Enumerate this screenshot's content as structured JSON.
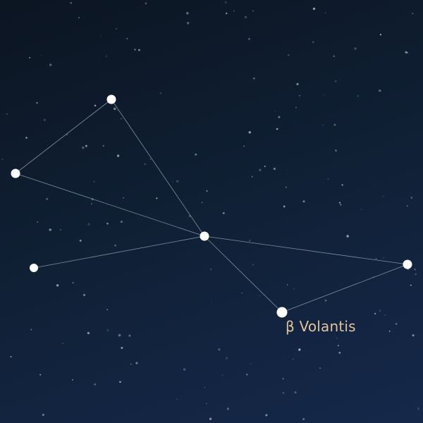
{
  "constellation": {
    "highlighted_star_label": "β Volantis"
  },
  "colors": {
    "sky_top": "#0c1522",
    "sky_bottom": "#15284a",
    "line": "#8fa6b4",
    "star": "#ffffff",
    "label": "#e1c39a"
  }
}
